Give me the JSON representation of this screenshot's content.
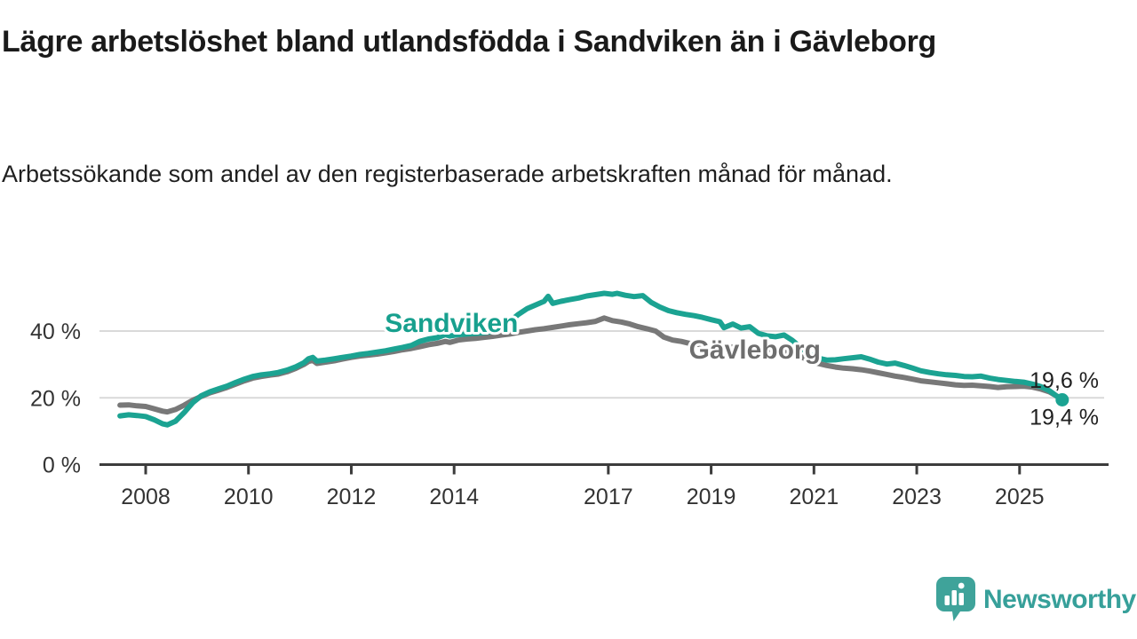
{
  "header": {
    "title": "Lägre arbetslöshet bland utlandsfödda i Sandviken än i Gävleborg",
    "subtitle": "Arbetssökande som andel av den registerbaserade arbetskraften månad för månad."
  },
  "footer": {
    "logo_text": "Newsworthy",
    "logo_icon": "speech-bubble-bar-chart-icon"
  },
  "palette": {
    "teal": "#1ba392",
    "gray_line": "#787878",
    "gray_label": "#6e6e6e",
    "grid": "#d9d9d9",
    "axis": "#3c3c3c",
    "axis_text": "#333333",
    "end_label_text": "#1f1f1f",
    "logo_teal": "#3fa39a"
  },
  "chart_data": {
    "type": "line",
    "title": "Lägre arbetslöshet bland utlandsfödda i Sandviken än i Gävleborg",
    "subtitle": "Arbetssökande som andel av den registerbaserade arbetskraften månad för månad.",
    "unit": "%",
    "grid": "horizontal-only",
    "legend_position": "inline-labels",
    "x_axis": {
      "ticks": [
        2008,
        2010,
        2012,
        2014,
        2017,
        2019,
        2021,
        2023,
        2025
      ],
      "range": [
        2007.1,
        2026.7
      ]
    },
    "y_axis": {
      "ticks": [
        {
          "value": 0,
          "label": "0 %"
        },
        {
          "value": 20,
          "label": "20 %"
        },
        {
          "value": 40,
          "label": "40 %"
        }
      ],
      "gridlines": [
        20,
        40
      ],
      "range": [
        0,
        56
      ]
    },
    "series": [
      {
        "name": "Sandviken",
        "slug": "sandviken",
        "color": "#1ba392",
        "label_color": "#17a08e",
        "end_label": "19,4 %",
        "end_value": 19.4,
        "end_label_dy": 28,
        "marker_end": true,
        "label_pos": {
          "t": 2013.95,
          "v": 42.4
        },
        "points": [
          [
            2007.5,
            14.6
          ],
          [
            2007.67,
            14.9
          ],
          [
            2007.83,
            14.7
          ],
          [
            2008.0,
            14.4
          ],
          [
            2008.17,
            13.4
          ],
          [
            2008.33,
            12.2
          ],
          [
            2008.42,
            11.9
          ],
          [
            2008.58,
            13.0
          ],
          [
            2008.75,
            15.6
          ],
          [
            2008.92,
            18.6
          ],
          [
            2009.08,
            20.6
          ],
          [
            2009.25,
            21.8
          ],
          [
            2009.42,
            22.7
          ],
          [
            2009.58,
            23.5
          ],
          [
            2009.75,
            24.6
          ],
          [
            2009.92,
            25.6
          ],
          [
            2010.08,
            26.4
          ],
          [
            2010.25,
            26.9
          ],
          [
            2010.42,
            27.2
          ],
          [
            2010.58,
            27.6
          ],
          [
            2010.75,
            28.3
          ],
          [
            2010.92,
            29.3
          ],
          [
            2011.08,
            30.5
          ],
          [
            2011.17,
            31.7
          ],
          [
            2011.25,
            32.1
          ],
          [
            2011.33,
            31.0
          ],
          [
            2011.5,
            31.3
          ],
          [
            2011.67,
            31.7
          ],
          [
            2011.83,
            32.1
          ],
          [
            2012.0,
            32.5
          ],
          [
            2012.17,
            33.0
          ],
          [
            2012.33,
            33.3
          ],
          [
            2012.5,
            33.7
          ],
          [
            2012.67,
            34.1
          ],
          [
            2012.83,
            34.6
          ],
          [
            2013.0,
            35.1
          ],
          [
            2013.17,
            35.7
          ],
          [
            2013.33,
            36.9
          ],
          [
            2013.5,
            37.6
          ],
          [
            2013.67,
            38.0
          ],
          [
            2013.83,
            38.9
          ],
          [
            2013.92,
            38.5
          ],
          [
            2014.08,
            38.9
          ],
          [
            2014.25,
            39.1
          ],
          [
            2014.42,
            39.3
          ],
          [
            2014.58,
            39.5
          ],
          [
            2014.75,
            39.9
          ],
          [
            2014.92,
            40.8
          ],
          [
            2015.08,
            42.8
          ],
          [
            2015.25,
            45.0
          ],
          [
            2015.42,
            46.7
          ],
          [
            2015.58,
            47.8
          ],
          [
            2015.75,
            48.9
          ],
          [
            2015.83,
            50.4
          ],
          [
            2015.92,
            48.3
          ],
          [
            2016.08,
            48.9
          ],
          [
            2016.25,
            49.4
          ],
          [
            2016.42,
            49.9
          ],
          [
            2016.58,
            50.5
          ],
          [
            2016.75,
            50.9
          ],
          [
            2016.92,
            51.3
          ],
          [
            2017.08,
            51.0
          ],
          [
            2017.17,
            51.3
          ],
          [
            2017.33,
            50.7
          ],
          [
            2017.5,
            50.3
          ],
          [
            2017.67,
            50.6
          ],
          [
            2017.83,
            48.6
          ],
          [
            2018.0,
            47.2
          ],
          [
            2018.17,
            46.1
          ],
          [
            2018.33,
            45.5
          ],
          [
            2018.5,
            45.0
          ],
          [
            2018.67,
            44.6
          ],
          [
            2018.83,
            44.1
          ],
          [
            2019.0,
            43.4
          ],
          [
            2019.17,
            42.8
          ],
          [
            2019.25,
            41.0
          ],
          [
            2019.42,
            42.1
          ],
          [
            2019.58,
            40.9
          ],
          [
            2019.75,
            41.3
          ],
          [
            2019.92,
            39.3
          ],
          [
            2020.08,
            38.6
          ],
          [
            2020.25,
            38.3
          ],
          [
            2020.42,
            38.8
          ],
          [
            2020.58,
            37.2
          ],
          [
            2020.75,
            35.0
          ],
          [
            2020.92,
            33.0
          ],
          [
            2021.08,
            31.9
          ],
          [
            2021.25,
            31.3
          ],
          [
            2021.42,
            31.4
          ],
          [
            2021.58,
            31.7
          ],
          [
            2021.75,
            32.0
          ],
          [
            2021.92,
            32.3
          ],
          [
            2022.08,
            31.6
          ],
          [
            2022.25,
            30.7
          ],
          [
            2022.42,
            30.1
          ],
          [
            2022.58,
            30.4
          ],
          [
            2022.75,
            29.7
          ],
          [
            2022.92,
            28.9
          ],
          [
            2023.08,
            28.1
          ],
          [
            2023.25,
            27.6
          ],
          [
            2023.42,
            27.2
          ],
          [
            2023.58,
            26.9
          ],
          [
            2023.75,
            26.7
          ],
          [
            2023.92,
            26.4
          ],
          [
            2024.08,
            26.3
          ],
          [
            2024.25,
            26.5
          ],
          [
            2024.42,
            25.9
          ],
          [
            2024.58,
            25.5
          ],
          [
            2024.75,
            25.2
          ],
          [
            2024.92,
            24.9
          ],
          [
            2025.08,
            24.7
          ],
          [
            2025.25,
            24.1
          ],
          [
            2025.42,
            23.3
          ],
          [
            2025.58,
            22.1
          ],
          [
            2025.67,
            21.1
          ],
          [
            2025.75,
            20.2
          ],
          [
            2025.83,
            19.4
          ]
        ]
      },
      {
        "name": "Gävleborg",
        "slug": "gavleborg",
        "color": "#787878",
        "label_color": "#6e6e6e",
        "end_label": "19,6 %",
        "end_value": 19.6,
        "end_label_dy": -13,
        "marker_end": false,
        "label_pos": {
          "t": 2019.85,
          "v": 34.4
        },
        "points": [
          [
            2007.5,
            17.8
          ],
          [
            2007.67,
            17.9
          ],
          [
            2007.83,
            17.6
          ],
          [
            2008.0,
            17.4
          ],
          [
            2008.17,
            16.7
          ],
          [
            2008.33,
            16.0
          ],
          [
            2008.42,
            15.8
          ],
          [
            2008.58,
            16.5
          ],
          [
            2008.75,
            17.8
          ],
          [
            2008.92,
            19.3
          ],
          [
            2009.08,
            20.4
          ],
          [
            2009.25,
            21.5
          ],
          [
            2009.42,
            22.3
          ],
          [
            2009.58,
            23.1
          ],
          [
            2009.75,
            24.1
          ],
          [
            2009.92,
            25.1
          ],
          [
            2010.08,
            25.9
          ],
          [
            2010.25,
            26.4
          ],
          [
            2010.42,
            26.8
          ],
          [
            2010.58,
            27.1
          ],
          [
            2010.75,
            27.8
          ],
          [
            2010.92,
            28.8
          ],
          [
            2011.08,
            30.0
          ],
          [
            2011.17,
            30.9
          ],
          [
            2011.25,
            31.2
          ],
          [
            2011.33,
            30.3
          ],
          [
            2011.5,
            30.7
          ],
          [
            2011.67,
            31.1
          ],
          [
            2011.83,
            31.6
          ],
          [
            2012.0,
            32.1
          ],
          [
            2012.17,
            32.5
          ],
          [
            2012.33,
            32.8
          ],
          [
            2012.5,
            33.1
          ],
          [
            2012.67,
            33.5
          ],
          [
            2012.83,
            33.9
          ],
          [
            2013.0,
            34.4
          ],
          [
            2013.17,
            34.8
          ],
          [
            2013.33,
            35.3
          ],
          [
            2013.5,
            35.9
          ],
          [
            2013.67,
            36.3
          ],
          [
            2013.83,
            36.9
          ],
          [
            2013.92,
            36.6
          ],
          [
            2014.08,
            37.3
          ],
          [
            2014.25,
            37.6
          ],
          [
            2014.42,
            37.8
          ],
          [
            2014.58,
            38.1
          ],
          [
            2014.75,
            38.4
          ],
          [
            2014.92,
            38.8
          ],
          [
            2015.08,
            39.1
          ],
          [
            2015.25,
            39.6
          ],
          [
            2015.42,
            40.0
          ],
          [
            2015.58,
            40.4
          ],
          [
            2015.75,
            40.7
          ],
          [
            2015.92,
            41.1
          ],
          [
            2016.08,
            41.5
          ],
          [
            2016.25,
            41.9
          ],
          [
            2016.42,
            42.2
          ],
          [
            2016.58,
            42.5
          ],
          [
            2016.75,
            42.9
          ],
          [
            2016.92,
            43.9
          ],
          [
            2017.08,
            43.1
          ],
          [
            2017.25,
            42.7
          ],
          [
            2017.42,
            42.1
          ],
          [
            2017.58,
            41.3
          ],
          [
            2017.75,
            40.7
          ],
          [
            2017.92,
            40.0
          ],
          [
            2018.08,
            38.2
          ],
          [
            2018.25,
            37.3
          ],
          [
            2018.42,
            36.9
          ],
          [
            2018.58,
            36.3
          ],
          [
            2018.75,
            36.0
          ],
          [
            2018.92,
            35.4
          ],
          [
            2019.08,
            35.1
          ],
          [
            2019.25,
            34.8
          ],
          [
            2019.42,
            35.2
          ],
          [
            2019.58,
            34.9
          ],
          [
            2019.75,
            34.7
          ],
          [
            2019.92,
            34.4
          ],
          [
            2020.08,
            34.6
          ],
          [
            2020.25,
            34.3
          ],
          [
            2020.42,
            33.8
          ],
          [
            2020.58,
            33.2
          ],
          [
            2020.75,
            32.3
          ],
          [
            2020.92,
            31.1
          ],
          [
            2021.08,
            30.3
          ],
          [
            2021.25,
            29.7
          ],
          [
            2021.42,
            29.2
          ],
          [
            2021.58,
            28.9
          ],
          [
            2021.75,
            28.7
          ],
          [
            2021.92,
            28.4
          ],
          [
            2022.08,
            28.0
          ],
          [
            2022.25,
            27.5
          ],
          [
            2022.42,
            27.0
          ],
          [
            2022.58,
            26.5
          ],
          [
            2022.75,
            26.1
          ],
          [
            2022.92,
            25.6
          ],
          [
            2023.08,
            25.1
          ],
          [
            2023.25,
            24.8
          ],
          [
            2023.42,
            24.5
          ],
          [
            2023.58,
            24.2
          ],
          [
            2023.75,
            23.9
          ],
          [
            2023.92,
            23.7
          ],
          [
            2024.08,
            23.8
          ],
          [
            2024.25,
            23.6
          ],
          [
            2024.42,
            23.4
          ],
          [
            2024.58,
            23.1
          ],
          [
            2024.75,
            23.3
          ],
          [
            2024.92,
            23.4
          ],
          [
            2025.08,
            23.5
          ],
          [
            2025.25,
            23.2
          ],
          [
            2025.42,
            22.6
          ],
          [
            2025.58,
            21.8
          ],
          [
            2025.67,
            21.0
          ],
          [
            2025.75,
            20.3
          ],
          [
            2025.83,
            19.6
          ]
        ]
      }
    ]
  }
}
